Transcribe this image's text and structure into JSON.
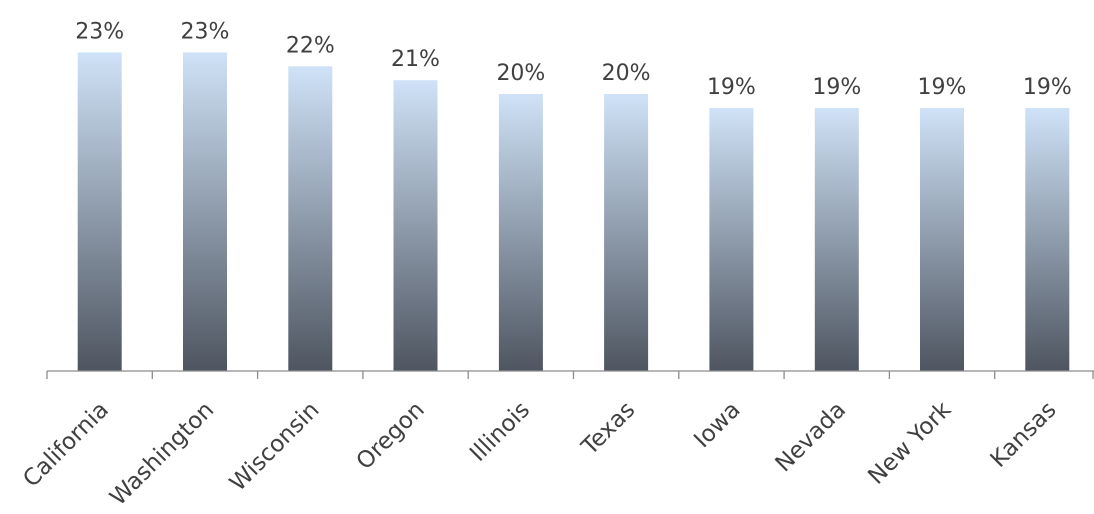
{
  "chart_data": {
    "type": "bar",
    "categories": [
      "California",
      "Washington",
      "Wisconsin",
      "Oregon",
      "Illinois",
      "Texas",
      "Iowa",
      "Nevada",
      "New York",
      "Kansas"
    ],
    "values": [
      23,
      23,
      22,
      21,
      20,
      20,
      19,
      19,
      19,
      19
    ],
    "data_labels": [
      "23%",
      "23%",
      "22%",
      "21%",
      "20%",
      "20%",
      "19%",
      "19%",
      "19%",
      "19%"
    ],
    "title": "",
    "xlabel": "",
    "ylabel": "",
    "value_unit": "%",
    "grid": false,
    "legend": "none",
    "colors": {
      "bar_top": "#cfe2f7",
      "bar_bottom": "#4e5560",
      "label": "#404040",
      "axis": "#8c8c8c"
    }
  }
}
